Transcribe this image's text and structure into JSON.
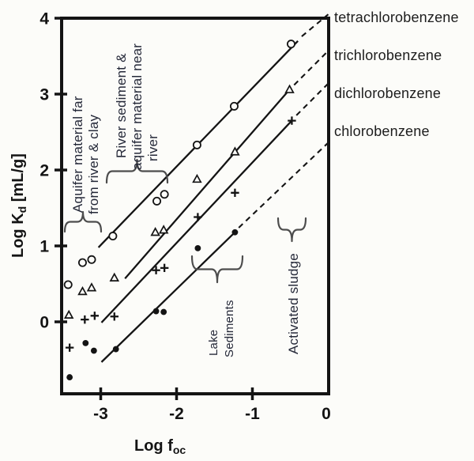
{
  "chart_data": {
    "type": "scatter",
    "title": "",
    "xlabel": {
      "main": "Log f",
      "sub": "oc"
    },
    "ylabel": {
      "main": "Log K",
      "sub": "d",
      "rest": " [mL/g]"
    },
    "xlim": [
      -3.51,
      0
    ],
    "ylim": [
      -0.95,
      4
    ],
    "x_ticks": [
      -3,
      -2,
      -1,
      0
    ],
    "y_ticks": [
      0,
      1,
      2,
      3,
      4
    ],
    "grid": false,
    "legend_position": "right-outside",
    "ink_color": "#141414",
    "brace_color": "#4d4d4d",
    "series": [
      {
        "name": "tetrachlorobenzene",
        "marker": "open-circle",
        "points": [
          [
            -3.43,
            0.49
          ],
          [
            -3.24,
            0.78
          ],
          [
            -3.12,
            0.82
          ],
          [
            -2.84,
            1.13
          ],
          [
            -2.26,
            1.59
          ],
          [
            -2.16,
            1.68
          ],
          [
            -1.73,
            2.33
          ],
          [
            -1.24,
            2.84
          ],
          [
            -0.49,
            3.66
          ]
        ],
        "line_solid": [
          [
            -3.03,
            0.98
          ],
          [
            -0.4,
            3.7
          ]
        ],
        "line_dashed": [
          [
            -0.35,
            3.76
          ],
          [
            0.0,
            4.05
          ]
        ]
      },
      {
        "name": "trichlorobenzene",
        "marker": "open-triangle",
        "points": [
          [
            -3.42,
            0.09
          ],
          [
            -3.24,
            0.4
          ],
          [
            -3.12,
            0.45
          ],
          [
            -2.82,
            0.58
          ],
          [
            -2.28,
            1.18
          ],
          [
            -2.17,
            1.21
          ],
          [
            -1.73,
            1.88
          ],
          [
            -1.23,
            2.24
          ],
          [
            -0.51,
            3.06
          ]
        ],
        "line_solid": [
          [
            -2.68,
            0.57
          ],
          [
            -0.51,
            3.06
          ]
        ],
        "line_dashed": [
          [
            -0.45,
            3.12
          ],
          [
            0.0,
            3.57
          ]
        ]
      },
      {
        "name": "dichlorobenzene",
        "marker": "plus",
        "points": [
          [
            -3.41,
            -0.34
          ],
          [
            -3.21,
            0.03
          ],
          [
            -3.08,
            0.08
          ],
          [
            -2.82,
            0.07
          ],
          [
            -2.27,
            0.68
          ],
          [
            -2.16,
            0.71
          ],
          [
            -1.72,
            1.38
          ],
          [
            -1.23,
            1.7
          ],
          [
            -0.48,
            2.65
          ]
        ],
        "line_solid": [
          [
            -2.99,
            -0.01
          ],
          [
            -0.48,
            2.65
          ]
        ],
        "line_dashed": [
          [
            -0.42,
            2.72
          ],
          [
            0.0,
            3.14
          ]
        ]
      },
      {
        "name": "chlorobenzene",
        "marker": "filled-circle",
        "points": [
          [
            -3.41,
            -0.73
          ],
          [
            -3.2,
            -0.28
          ],
          [
            -3.09,
            -0.38
          ],
          [
            -2.8,
            -0.36
          ],
          [
            -2.27,
            0.14
          ],
          [
            -2.17,
            0.13
          ],
          [
            -1.72,
            0.97
          ],
          [
            -1.23,
            1.18
          ]
        ],
        "line_solid": [
          [
            -2.99,
            -0.53
          ],
          [
            -1.23,
            1.18
          ]
        ],
        "line_dashed": [
          [
            -1.18,
            1.24
          ],
          [
            0.0,
            2.36
          ]
        ]
      }
    ],
    "region_labels": [
      {
        "id": "aquifer-far",
        "lines": [
          "Aquifer material far",
          "from  river & clay"
        ]
      },
      {
        "id": "river-near",
        "lines": [
          "River sediment &",
          "aquifer material near",
          "river"
        ]
      },
      {
        "id": "lake-sediments",
        "lines": [
          "Lake",
          "Sediments"
        ]
      },
      {
        "id": "activated-sludge",
        "lines": [
          "Activated sludge"
        ]
      }
    ],
    "braces": [
      {
        "id": "aquifer-far",
        "x1": 82,
        "x2": 128,
        "y_ends": 293,
        "y_tip": 268
      },
      {
        "id": "river-near",
        "x1": 135,
        "x2": 212,
        "y_ends": 231,
        "y_tip": 202
      },
      {
        "id": "lake-sediments",
        "x1": 243,
        "x2": 307,
        "y_ends": 324,
        "y_tip": 357
      },
      {
        "id": "activated-sludge",
        "x1": 352,
        "x2": 387,
        "y_ends": 276,
        "y_tip": 305
      }
    ]
  }
}
